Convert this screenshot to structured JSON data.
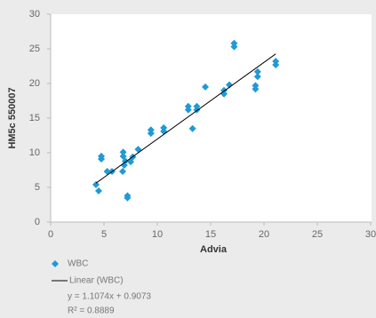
{
  "chart_data": {
    "type": "scatter",
    "x_label": "Advia",
    "y_label": "HM5c 550007",
    "xlim": [
      0,
      30
    ],
    "xticks": [
      0,
      5,
      10,
      15,
      20,
      25,
      30
    ],
    "ylim": [
      0,
      30
    ],
    "yticks": [
      0,
      5,
      10,
      15,
      20,
      25,
      30
    ],
    "grid": false,
    "series": [
      {
        "name": "WBC",
        "color": "#1f9ad6",
        "x": [
          4.25,
          4.5,
          4.75,
          4.75,
          5.3,
          5.75,
          6.8,
          6.8,
          6.75,
          6.9,
          7.0,
          7.2,
          7.2,
          7.5,
          7.7,
          8.2,
          9.4,
          9.4,
          10.6,
          10.6,
          12.9,
          12.9,
          13.3,
          13.7,
          13.7,
          14.5,
          16.25,
          16.25,
          16.75,
          17.2,
          17.2,
          19.2,
          19.2,
          19.4,
          19.4,
          21.1,
          21.1
        ],
        "values": [
          5.4,
          4.5,
          9.5,
          9.1,
          7.3,
          7.3,
          10.1,
          9.5,
          7.3,
          8.2,
          8.8,
          3.8,
          3.5,
          8.7,
          9.4,
          10.5,
          13.3,
          12.8,
          13.6,
          13.1,
          16.7,
          16.2,
          13.5,
          16.7,
          16.2,
          19.5,
          19.0,
          18.5,
          19.8,
          25.8,
          25.3,
          19.7,
          19.2,
          21.7,
          21.0,
          23.2,
          22.7
        ]
      }
    ],
    "trendline": {
      "name": "Linear (WBC)",
      "slope": 1.1074,
      "intercept": 0.9073,
      "equation": "y = 1.1074x + 0.9073",
      "r_squared": "R² = 0.8889"
    }
  }
}
